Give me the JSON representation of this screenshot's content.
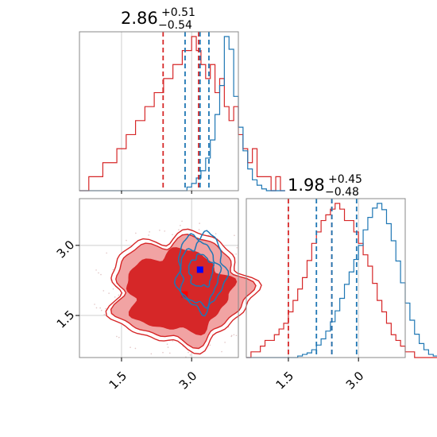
{
  "chart_data": [
    {
      "type": "histogram",
      "panel": "top-left",
      "title": {
        "value": "2.86",
        "plus": "+0.51",
        "minus": "−0.54"
      },
      "xlim": [
        0.6,
        4.0
      ],
      "grid": true,
      "bins": {
        "start": 0.6,
        "width": 0.1
      },
      "series": [
        {
          "color": "#d62728",
          "counts": [
            0,
            0,
            1,
            1,
            1,
            2,
            2,
            2,
            3,
            3,
            4,
            4,
            5,
            5,
            6,
            6,
            7,
            7,
            8,
            8,
            9,
            9,
            10,
            10,
            11,
            10,
            9,
            8,
            9,
            7,
            8,
            6,
            5,
            6,
            4,
            3,
            2,
            3,
            1,
            1,
            1,
            0,
            1,
            0
          ]
        },
        {
          "color": "#1f77b4",
          "counts": [
            0,
            0,
            0,
            0,
            0,
            0,
            0,
            0,
            0,
            0,
            0,
            0,
            0,
            0,
            0,
            0,
            0,
            0,
            0,
            0,
            0,
            0,
            0,
            2,
            4,
            7,
            11,
            18,
            28,
            42,
            58,
            85,
            78,
            52,
            35,
            22,
            12,
            6,
            3,
            1,
            0,
            0,
            0,
            0
          ]
        }
      ],
      "quantile_lines": [
        {
          "color": "#d62728",
          "values": [
            2.39,
            3.15
          ]
        },
        {
          "color": "#1f77b4",
          "values": [
            2.86,
            3.37
          ]
        },
        {
          "color": "#1f77b4",
          "values": [
            3.18
          ]
        }
      ]
    },
    {
      "type": "contour",
      "panel": "bottom-left",
      "xlim": [
        0.6,
        4.0
      ],
      "ylim": [
        0.6,
        4.0
      ],
      "xticks": [
        "1.5",
        "3.0"
      ],
      "yticks": [
        "3.0",
        "1.5"
      ],
      "grid": true,
      "series": [
        {
          "color": "#d62728",
          "center": [
            2.75,
            2.05
          ],
          "filled_levels": [
            0.9,
            0.55
          ],
          "marker": [
            2.85,
            1.95
          ]
        },
        {
          "color": "#1f77b4",
          "center": [
            3.2,
            2.45
          ],
          "line_levels": 3,
          "marker": [
            3.18,
            2.48
          ]
        }
      ]
    },
    {
      "type": "histogram",
      "panel": "bottom-right",
      "title": {
        "value": "1.98",
        "plus": "+0.45",
        "minus": "−0.48"
      },
      "xlim": [
        0.6,
        4.0
      ],
      "xticks": [
        "1.5",
        "3.0"
      ],
      "grid": true,
      "bins": {
        "start": 0.6,
        "width": 0.1
      },
      "series": [
        {
          "color": "#d62728",
          "counts": [
            0,
            1,
            1,
            2,
            3,
            3,
            4,
            5,
            6,
            8,
            10,
            12,
            14,
            17,
            20,
            22,
            24,
            25,
            26,
            27,
            26,
            24,
            24,
            22,
            20,
            18,
            16,
            13,
            10,
            8,
            6,
            4,
            3,
            2,
            1,
            1,
            0,
            0,
            0,
            0,
            0,
            0,
            0,
            0
          ]
        },
        {
          "color": "#1f77b4",
          "counts": [
            0,
            0,
            0,
            0,
            0,
            0,
            0,
            0,
            0,
            0,
            0,
            1,
            2,
            3,
            5,
            8,
            12,
            17,
            23,
            30,
            38,
            47,
            55,
            63,
            72,
            82,
            90,
            96,
            99,
            95,
            86,
            75,
            62,
            48,
            35,
            24,
            15,
            9,
            5,
            2,
            1,
            0,
            0,
            0
          ]
        }
      ],
      "quantile_lines": [
        {
          "color": "#d62728",
          "values": [
            1.5,
            2.43
          ]
        },
        {
          "color": "#1f77b4",
          "values": [
            2.1,
            2.96
          ]
        },
        {
          "color": "#1f77b4",
          "values": [
            2.43
          ]
        }
      ]
    }
  ]
}
